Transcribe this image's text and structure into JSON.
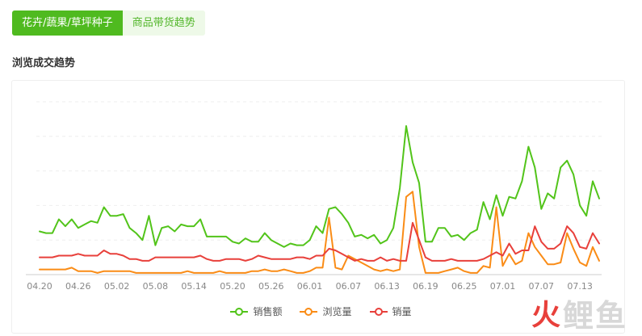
{
  "tabs": [
    {
      "label": "花卉/蔬果/草坪种子",
      "active": true
    },
    {
      "label": "商品带货趋势",
      "active": false
    }
  ],
  "section_title": "浏览成交趋势",
  "watermark": {
    "fire": "火",
    "text": "鲤鱼"
  },
  "colors": {
    "sales_amount": "#52c41a",
    "views": "#fa8c16",
    "sales_volume": "#e8403b",
    "tab_active": "#4fba1f"
  },
  "chart_data": {
    "type": "line",
    "x_tick_labels": [
      "04.20",
      "04.26",
      "05.02",
      "05.08",
      "05.14",
      "05.20",
      "05.26",
      "06.01",
      "06.07",
      "06.13",
      "06.19",
      "06.25",
      "07.01",
      "07.07",
      "07.13"
    ],
    "y_axis_labels_visible": false,
    "grid": "horizontal-dashed",
    "legend_position": "bottom-center",
    "ylim": [
      0,
      100
    ],
    "series": [
      {
        "name": "销售额",
        "color": "#52c41a",
        "values": [
          25,
          24,
          24,
          32,
          28,
          32,
          27,
          29,
          31,
          30,
          39,
          34,
          34,
          35,
          27,
          24,
          20,
          34,
          17,
          27,
          28,
          25,
          29,
          28,
          28,
          32,
          22,
          22,
          22,
          22,
          19,
          18,
          21,
          19,
          19,
          24,
          20,
          18,
          16,
          18,
          17,
          17,
          20,
          28,
          24,
          38,
          39,
          35,
          30,
          22,
          23,
          21,
          23,
          18,
          20,
          27,
          50,
          86,
          65,
          53,
          19,
          19,
          27,
          27,
          22,
          23,
          20,
          24,
          26,
          42,
          32,
          46,
          34,
          45,
          44,
          54,
          74,
          62,
          38,
          47,
          44,
          62,
          66,
          58,
          40,
          34,
          54,
          44
        ]
      },
      {
        "name": "浏览量",
        "color": "#fa8c16",
        "values": [
          3,
          3,
          3,
          3,
          3,
          4,
          2,
          2,
          2,
          1,
          2,
          2,
          2,
          2,
          2,
          1,
          1,
          1,
          1,
          1,
          1,
          1,
          1,
          2,
          1,
          1,
          1,
          1,
          2,
          1,
          1,
          1,
          1,
          2,
          2,
          3,
          2,
          2,
          3,
          2,
          1,
          1,
          2,
          4,
          4,
          33,
          4,
          3,
          11,
          9,
          7,
          5,
          3,
          2,
          3,
          2,
          3,
          45,
          48,
          16,
          1,
          1,
          1,
          2,
          3,
          4,
          2,
          1,
          1,
          5,
          4,
          39,
          5,
          12,
          6,
          8,
          24,
          16,
          11,
          6,
          6,
          7,
          24,
          15,
          7,
          5,
          16,
          8
        ]
      },
      {
        "name": "销量",
        "color": "#e8403b",
        "values": [
          10,
          10,
          10,
          11,
          11,
          11,
          12,
          11,
          11,
          11,
          14,
          12,
          12,
          11,
          9,
          9,
          8,
          8,
          10,
          10,
          10,
          10,
          10,
          10,
          10,
          11,
          9,
          8,
          8,
          9,
          9,
          9,
          8,
          9,
          11,
          10,
          9,
          9,
          9,
          9,
          10,
          10,
          9,
          11,
          11,
          15,
          14,
          12,
          10,
          8,
          9,
          8,
          8,
          10,
          8,
          9,
          8,
          8,
          30,
          20,
          10,
          8,
          8,
          8,
          9,
          8,
          8,
          8,
          8,
          9,
          11,
          13,
          11,
          18,
          12,
          14,
          14,
          28,
          19,
          15,
          15,
          18,
          28,
          24,
          16,
          15,
          24,
          18
        ]
      }
    ]
  }
}
